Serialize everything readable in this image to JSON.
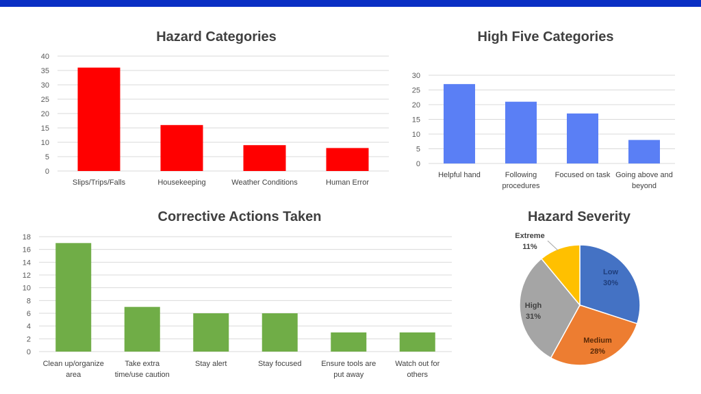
{
  "colors": {
    "topbar": "#0a2fc4",
    "red": "#ff0000",
    "blue": "#5a7ff5",
    "green": "#70ad47"
  },
  "chart_data": [
    {
      "id": "hazard",
      "type": "bar",
      "title": "Hazard Categories",
      "categories": [
        [
          "Slips/Trips/Falls"
        ],
        [
          "Housekeeping"
        ],
        [
          "Weather Conditions"
        ],
        [
          "Human Error"
        ]
      ],
      "values": [
        36,
        16,
        9,
        8
      ],
      "ylim": [
        0,
        40
      ],
      "ytick_step": 5,
      "color": "#ff0000",
      "grid": true
    },
    {
      "id": "highfive",
      "type": "bar",
      "title": "High Five Categories",
      "categories": [
        [
          "Helpful hand"
        ],
        [
          "Following",
          "procedures"
        ],
        [
          "Focused on task"
        ],
        [
          "Going above and",
          "beyond"
        ]
      ],
      "values": [
        27,
        21,
        17,
        8
      ],
      "ylim": [
        0,
        30
      ],
      "ytick_step": 5,
      "color": "#5a7ff5",
      "grid": true
    },
    {
      "id": "corrective",
      "type": "bar",
      "title": "Corrective Actions Taken",
      "categories": [
        [
          "Clean up/organize",
          "area"
        ],
        [
          "Take extra",
          "time/use caution"
        ],
        [
          "Stay alert"
        ],
        [
          "Stay focused"
        ],
        [
          "Ensure tools are",
          "put away"
        ],
        [
          "Watch out for",
          "others"
        ]
      ],
      "values": [
        17,
        7,
        6,
        6,
        3,
        3
      ],
      "ylim": [
        0,
        18
      ],
      "ytick_step": 2,
      "color": "#70ad47",
      "grid": true
    },
    {
      "id": "severity",
      "type": "pie",
      "title": "Hazard Severity",
      "slices": [
        {
          "name": "Low",
          "value": 30,
          "label": "30%",
          "color": "#4472c4",
          "text_color": "#1f3d7a"
        },
        {
          "name": "Medium",
          "value": 28,
          "label": "28%",
          "color": "#ed7d31",
          "text_color": "#5a2a08"
        },
        {
          "name": "High",
          "value": 31,
          "label": "31%",
          "color": "#a5a5a5",
          "text_color": "#404040"
        },
        {
          "name": "Extreme",
          "value": 11,
          "label": "11%",
          "color": "#ffc000",
          "text_color": "#404040"
        }
      ]
    }
  ]
}
